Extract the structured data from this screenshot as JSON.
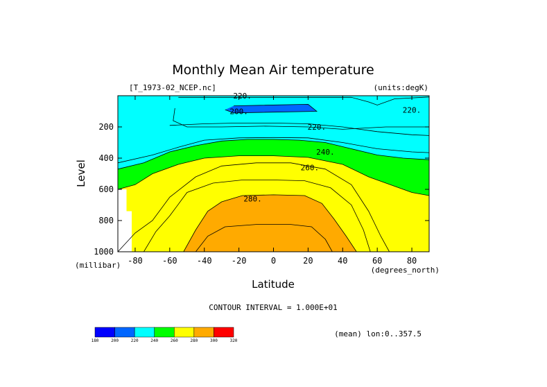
{
  "chart_data": {
    "type": "heatmap",
    "title": "Monthly Mean Air temperature",
    "source_label": "[T_1973-02_NCEP.nc]",
    "units_label": "(units:degK)",
    "xlabel": "Latitude",
    "ylabel": "Level",
    "x_units": "(degrees_north)",
    "y_units": "(millibar)",
    "contour_interval_text": "CONTOUR INTERVAL = 1.000E+01",
    "mean_text": "(mean) lon:0..357.5",
    "xlim": [
      -90,
      90
    ],
    "ylim": [
      1000,
      0
    ],
    "x_ticks": [
      -80,
      -60,
      -40,
      -20,
      0,
      20,
      40,
      60,
      80
    ],
    "y_ticks": [
      200,
      400,
      600,
      800,
      1000
    ],
    "contour_labels": [
      {
        "text": "220.",
        "lat": -18,
        "level": 0
      },
      {
        "text": "200.",
        "lat": -20,
        "level": 100
      },
      {
        "text": "220.",
        "lat": 80,
        "level": 90
      },
      {
        "text": "220.",
        "lat": 25,
        "level": 200
      },
      {
        "text": "240.",
        "lat": 30,
        "level": 360
      },
      {
        "text": "260.",
        "lat": 21,
        "level": 460
      },
      {
        "text": "280.",
        "lat": -12,
        "level": 660
      }
    ],
    "colorbar": {
      "bounds": [
        "180",
        "200",
        "220",
        "240",
        "260",
        "280",
        "300",
        "320"
      ],
      "colors": [
        "#0000ff",
        "#0066ff",
        "#00ffff",
        "#00ff00",
        "#ffff00",
        "#ffaa00",
        "#ff0000"
      ]
    },
    "fill_bands": [
      {
        "min": 180,
        "max": 200,
        "color": "#0000ff"
      },
      {
        "min": 200,
        "max": 220,
        "color": "#0066ff"
      },
      {
        "min": 220,
        "max": 240,
        "color": "#00ffff"
      },
      {
        "min": 240,
        "max": 260,
        "color": "#00ff00"
      },
      {
        "min": 260,
        "max": 280,
        "color": "#ffff00"
      },
      {
        "min": 280,
        "max": 300,
        "color": "#ffaa00"
      }
    ],
    "level_boundaries": [
      {
        "band": 200,
        "points": [
          [
            -23,
            65
          ],
          [
            20,
            55
          ],
          [
            25,
            100
          ],
          [
            -23,
            110
          ],
          [
            -28,
            90
          ]
        ]
      },
      {
        "band": 220,
        "points": [
          [
            -55,
            10
          ],
          [
            45,
            10
          ],
          [
            55,
            40
          ],
          [
            60,
            60
          ],
          [
            70,
            20
          ],
          [
            90,
            8
          ],
          [
            90,
            200
          ],
          [
            65,
            200
          ],
          [
            40,
            215
          ],
          [
            20,
            200
          ],
          [
            -5,
            195
          ],
          [
            -30,
            200
          ],
          [
            -50,
            200
          ],
          [
            -58,
            160
          ],
          [
            -57,
            80
          ]
        ]
      },
      {
        "band": 240,
        "points": [
          [
            -90,
            470
          ],
          [
            -75,
            430
          ],
          [
            -60,
            360
          ],
          [
            -45,
            320
          ],
          [
            -30,
            290
          ],
          [
            -15,
            280
          ],
          [
            0,
            280
          ],
          [
            15,
            285
          ],
          [
            30,
            300
          ],
          [
            45,
            340
          ],
          [
            60,
            380
          ],
          [
            75,
            400
          ],
          [
            90,
            410
          ],
          [
            90,
            1000
          ],
          [
            -90,
            1000
          ]
        ]
      },
      {
        "band": 260,
        "points": [
          [
            -90,
            600
          ],
          [
            -80,
            570
          ],
          [
            -70,
            500
          ],
          [
            -55,
            440
          ],
          [
            -40,
            400
          ],
          [
            -20,
            385
          ],
          [
            0,
            385
          ],
          [
            20,
            395
          ],
          [
            40,
            440
          ],
          [
            55,
            520
          ],
          [
            70,
            580
          ],
          [
            80,
            620
          ],
          [
            90,
            640
          ],
          [
            90,
            1000
          ],
          [
            -90,
            1000
          ]
        ]
      },
      {
        "band": 280,
        "points": [
          [
            -52,
            1000
          ],
          [
            -45,
            860
          ],
          [
            -38,
            740
          ],
          [
            -30,
            680
          ],
          [
            -18,
            640
          ],
          [
            0,
            635
          ],
          [
            18,
            640
          ],
          [
            28,
            690
          ],
          [
            35,
            790
          ],
          [
            42,
            900
          ],
          [
            48,
            1000
          ]
        ]
      }
    ],
    "contour_lines": [
      [
        [
          -90,
          1000
        ],
        [
          -80,
          880
        ],
        [
          -70,
          800
        ],
        [
          -60,
          650
        ],
        [
          -45,
          520
        ],
        [
          -30,
          450
        ],
        [
          -10,
          430
        ],
        [
          10,
          430
        ],
        [
          30,
          470
        ],
        [
          45,
          570
        ],
        [
          55,
          740
        ],
        [
          62,
          900
        ],
        [
          67,
          1000
        ]
      ],
      [
        [
          -75,
          1000
        ],
        [
          -68,
          870
        ],
        [
          -60,
          770
        ],
        [
          -50,
          620
        ],
        [
          -35,
          560
        ],
        [
          -18,
          540
        ],
        [
          0,
          540
        ],
        [
          18,
          545
        ],
        [
          33,
          590
        ],
        [
          45,
          700
        ],
        [
          52,
          860
        ],
        [
          56,
          1000
        ]
      ],
      [
        [
          -45,
          1000
        ],
        [
          -38,
          900
        ],
        [
          -28,
          840
        ],
        [
          -10,
          825
        ],
        [
          10,
          825
        ],
        [
          22,
          840
        ],
        [
          30,
          920
        ],
        [
          34,
          1000
        ]
      ],
      [
        [
          -90,
          430
        ],
        [
          -70,
          380
        ],
        [
          -55,
          330
        ],
        [
          -40,
          285
        ],
        [
          -20,
          270
        ],
        [
          0,
          268
        ],
        [
          20,
          270
        ],
        [
          40,
          300
        ],
        [
          60,
          340
        ],
        [
          80,
          360
        ],
        [
          90,
          365
        ]
      ],
      [
        [
          -60,
          190
        ],
        [
          -40,
          180
        ],
        [
          -20,
          175
        ],
        [
          0,
          175
        ],
        [
          20,
          180
        ],
        [
          40,
          200
        ],
        [
          60,
          230
        ],
        [
          80,
          250
        ],
        [
          90,
          255
        ]
      ]
    ]
  }
}
